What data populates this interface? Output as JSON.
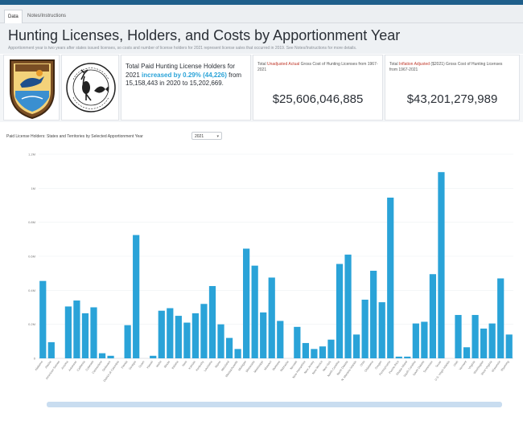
{
  "tabs": [
    {
      "label": "Data",
      "active": true
    },
    {
      "label": "Notes/Instructions",
      "active": false
    }
  ],
  "header": {
    "title": "Hunting Licenses, Holders, and Costs by Apportionment Year",
    "subtitle": "Apportionment year is two years after states issued licenses, so costs and number of license holders for 2021 represent license sales that occurred in 2019. See Notes/Instructions for more details."
  },
  "kpis": {
    "holders": {
      "prefix": "Total Paid Hunting License Holders for 2021 ",
      "highlight": "increased by 0.29% (44,226)",
      "suffix": " from 15,158,443 in 2020 to 15,202,669."
    },
    "unadjusted": {
      "label_prefix": "Total ",
      "label_highlight": "Unadjusted Actual",
      "label_suffix": " Gross Cost of Hunting Licenses from 1967-2021",
      "value": "$25,606,046,885"
    },
    "adjusted": {
      "label_prefix": "Total ",
      "label_highlight": "Inflation Adjusted",
      "label_suffix": " ($2021) Gross Cost of Hunting Licenses from 1967-2021",
      "value": "$43,201,279,989"
    }
  },
  "logos": [
    {
      "name": "usfws-seal",
      "text": "U.S. FISH & WILDLIFE SERVICE"
    },
    {
      "name": "wsfr-logo",
      "text": "WILDLIFE & SPORT FISH RESTORATION"
    }
  ],
  "controls": {
    "chart_label": "Paid License Holders: States and Territories by Selected Apportionment Year",
    "year_selected": "2021"
  },
  "colors": {
    "bar": "#2aa3d8",
    "accent": "#2aa3d8",
    "alert": "#c0392b",
    "topbar": "#1f5f8b"
  },
  "chart_data": {
    "type": "bar",
    "title": "",
    "xlabel": "",
    "ylabel": "",
    "ylim": [
      0,
      1200000
    ],
    "ticks": [
      0,
      200000,
      400000,
      600000,
      800000,
      1000000,
      1200000
    ],
    "tick_labels": [
      "0",
      "0.2M",
      "0.4M",
      "0.6M",
      "0.8M",
      "1M",
      "1.2M"
    ],
    "categories": [
      "Alabama",
      "Alaska",
      "American Samoa",
      "Arizona",
      "Arkansas",
      "California",
      "Colorado",
      "Connecticut",
      "Delaware",
      "District of Columbia",
      "Florida",
      "Georgia",
      "Guam",
      "Hawaii",
      "Idaho",
      "Illinois",
      "Indiana",
      "Iowa",
      "Kansas",
      "Kentucky",
      "Louisiana",
      "Maine",
      "Maryland",
      "Massachusetts",
      "Michigan",
      "Minnesota",
      "Mississippi",
      "Missouri",
      "Montana",
      "Nebraska",
      "Nevada",
      "New Hampshire",
      "New Jersey",
      "New Mexico",
      "New York",
      "North Carolina",
      "North Dakota",
      "N. Mariana Islands",
      "Ohio",
      "Oklahoma",
      "Oregon",
      "Pennsylvania",
      "Puerto Rico",
      "Rhode Island",
      "South Carolina",
      "South Dakota",
      "Tennessee",
      "Texas",
      "U.S. Virgin Islands",
      "Utah",
      "Vermont",
      "Virginia",
      "Washington",
      "West Virginia",
      "Wisconsin",
      "Wyoming"
    ],
    "values": [
      455000,
      95000,
      0,
      305000,
      340000,
      265000,
      300000,
      30000,
      15000,
      0,
      195000,
      725000,
      0,
      15000,
      280000,
      295000,
      250000,
      210000,
      265000,
      320000,
      425000,
      200000,
      120000,
      55000,
      645000,
      545000,
      270000,
      475000,
      220000,
      0,
      185000,
      90000,
      55000,
      70000,
      110000,
      555000,
      610000,
      140000,
      345000,
      515000,
      330000,
      945000,
      10000,
      10000,
      205000,
      215000,
      495000,
      1095000,
      0,
      255000,
      65000,
      255000,
      175000,
      205000,
      470000,
      140000
    ]
  }
}
